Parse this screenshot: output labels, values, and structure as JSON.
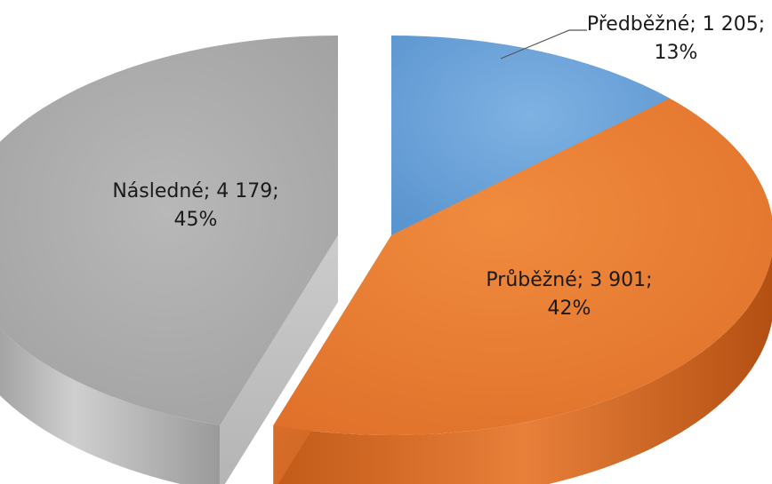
{
  "chart_data": {
    "type": "pie",
    "style": "3d-exploded",
    "categories": [
      "Předběžné",
      "Průběžné",
      "Následné"
    ],
    "values": [
      1205,
      3901,
      4179
    ],
    "percents": [
      13,
      42,
      45
    ],
    "colors": [
      "#5b9bd5",
      "#ed7d31",
      "#a5a5a5"
    ],
    "labels": {
      "line1": [
        "Předběžné; 1 205;",
        "Průběžné; 3 901;",
        "Následné; 4 179;"
      ],
      "line2": [
        "13%",
        "42%",
        "45%"
      ]
    },
    "legend": "none",
    "title": ""
  }
}
